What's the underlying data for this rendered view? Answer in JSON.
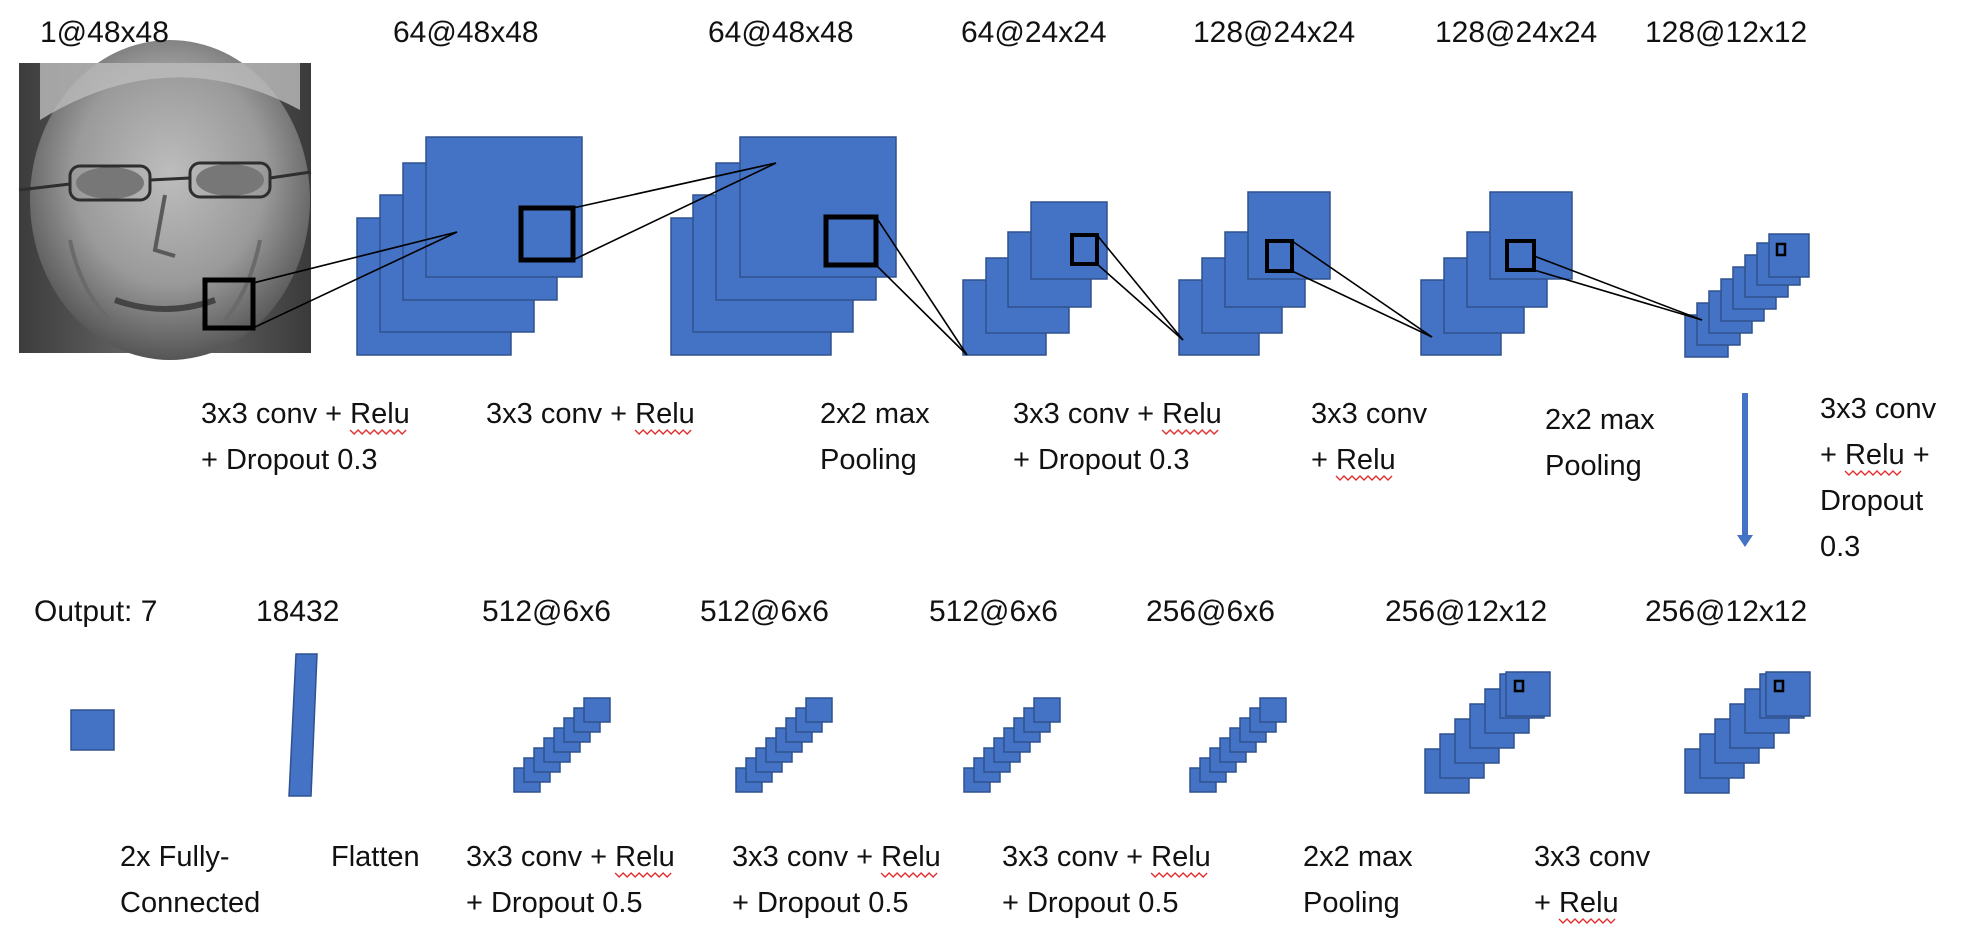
{
  "colors": {
    "layer_fill": "#4472c4",
    "layer_stroke": "#2f528f",
    "window_stroke": "#000000",
    "spellcheck_underline": "#e03030"
  },
  "input_image": {
    "icon": "face-photo-grayscale"
  },
  "top_row": {
    "dims": [
      "1@48x48",
      "64@48x48",
      "64@48x48",
      "64@24x24",
      "128@24x24",
      "128@24x24",
      "128@12x12"
    ],
    "ops": [
      {
        "lines": [
          "3x3 conv + Relu",
          "+ Dropout 0.3"
        ]
      },
      {
        "lines": [
          "3x3 conv + Relu"
        ]
      },
      {
        "lines": [
          "2x2 max",
          "Pooling"
        ]
      },
      {
        "lines": [
          "3x3 conv + Relu",
          "+ Dropout 0.3"
        ]
      },
      {
        "lines": [
          "3x3 conv",
          "+ Relu"
        ]
      },
      {
        "lines": [
          "2x2 max",
          "Pooling"
        ]
      }
    ]
  },
  "connector": {
    "arrow": "down-arrow",
    "lines": [
      "3x3 conv",
      "+ Relu +",
      "Dropout",
      "0.3"
    ]
  },
  "bottom_row": {
    "dims": [
      "Output: 7",
      "18432",
      "512@6x6",
      "512@6x6",
      "512@6x6",
      "256@6x6",
      "256@12x12",
      "256@12x12"
    ],
    "ops": [
      {
        "lines": [
          "2x Fully-",
          "Connected"
        ]
      },
      {
        "lines": [
          "Flatten"
        ]
      },
      {
        "lines": [
          "3x3 conv + Relu",
          "+ Dropout 0.5"
        ]
      },
      {
        "lines": [
          "3x3 conv + Relu",
          "+ Dropout 0.5"
        ]
      },
      {
        "lines": [
          "3x3 conv + Relu",
          "+ Dropout 0.5"
        ]
      },
      {
        "lines": [
          "2x2 max",
          "Pooling"
        ]
      },
      {
        "lines": [
          "3x3 conv",
          "+ Relu"
        ]
      }
    ]
  }
}
